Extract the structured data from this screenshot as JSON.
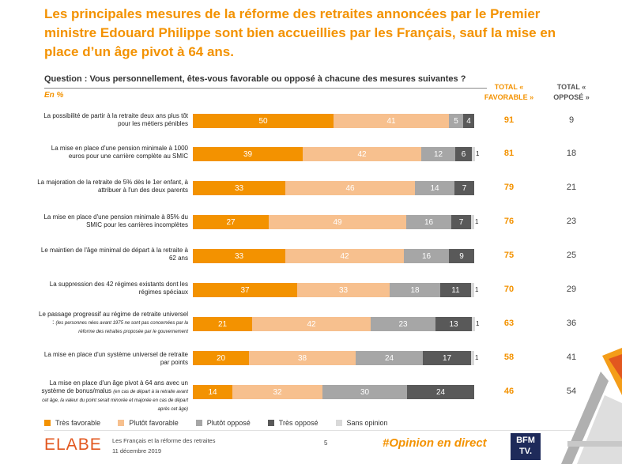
{
  "header": {
    "title": "Les principales mesures de la réforme des retraites annoncées par le Premier ministre Edouard Philippe sont bien accueillies par les Français, sauf la mise en place d’un âge pivot à 64 ans.",
    "question": "Question : Vous personnellement, êtes-vous favorable ou opposé à chacune des mesures suivantes ?",
    "unit": "En %",
    "total_favorable": "TOTAL « FAVORABLE »",
    "total_oppose": "TOTAL « OPPOSÉ »"
  },
  "chart_data": {
    "type": "bar",
    "stacked": true,
    "orientation": "horizontal",
    "categories": [
      "La possibilité de partir à la retraite deux ans plus tôt pour les métiers pénibles",
      "La mise en place d'une pension minimale à 1000 euros pour une carrière complète au SMIC",
      "La majoration de la retraite de 5% dès le 1er enfant, à attribuer à l'un des deux parents",
      "La mise en place d'une pension minimale à 85% du SMIC pour les carrières incomplètes",
      "Le maintien de l'âge minimal de départ à la retraite à 62 ans",
      "La suppression des 42 régimes existants dont les régimes spéciaux",
      "Le passage progressif au régime de retraite universel : (les personnes nées avant 1975 ne sont pas concernées par la réforme des retraites proposée par le gouvernement",
      "La mise en place d'un système universel de retraite par points",
      "La mise en place d'un âge pivot à 64 ans avec un système de bonus/malus (en cas de départ à la retraite avant cet âge, la valeur du point serait minorée et majorée en cas de départ après cet âge)"
    ],
    "series": [
      {
        "name": "Très favorable",
        "values": [
          50,
          39,
          33,
          27,
          33,
          37,
          21,
          20,
          14
        ]
      },
      {
        "name": "Plutôt favorable",
        "values": [
          41,
          42,
          46,
          49,
          42,
          33,
          42,
          38,
          32
        ]
      },
      {
        "name": "Plutôt opposé",
        "values": [
          5,
          12,
          14,
          16,
          16,
          18,
          23,
          24,
          30
        ]
      },
      {
        "name": "Très opposé",
        "values": [
          4,
          6,
          7,
          7,
          9,
          11,
          13,
          17,
          24
        ]
      },
      {
        "name": "Sans opinion",
        "values": [
          0,
          1,
          0,
          1,
          0,
          1,
          1,
          1,
          0
        ]
      }
    ],
    "total_favorable": [
      91,
      81,
      79,
      76,
      75,
      70,
      63,
      58,
      46
    ],
    "total_oppose": [
      9,
      18,
      21,
      23,
      25,
      29,
      36,
      41,
      54
    ],
    "xlim": [
      0,
      100
    ],
    "legend_position": "bottom",
    "colors": [
      "#f39200",
      "#f7c08e",
      "#a6a6a6",
      "#595959",
      "#d9d9d9"
    ]
  },
  "footer": {
    "logo": "ELABE",
    "source_line1": "Les Français et la réforme des retraites",
    "source_line2": "11 décembre 2019",
    "page": "5",
    "hashtag": "#Opinion en direct",
    "bfm_line1": "BFM",
    "bfm_line2": "TV."
  }
}
